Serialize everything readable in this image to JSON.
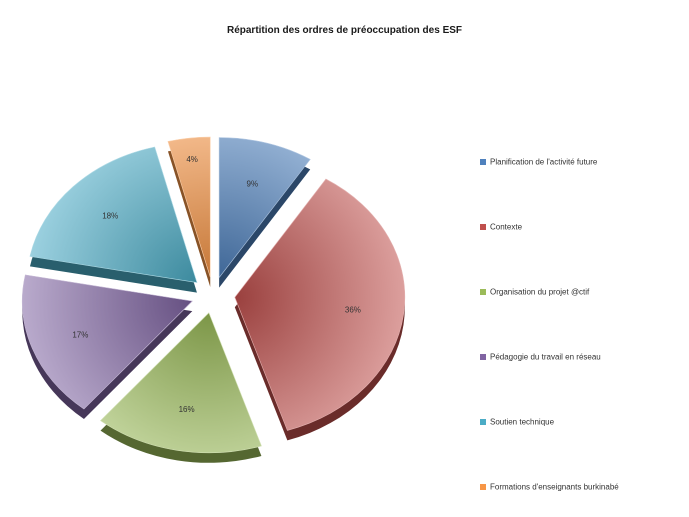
{
  "chart_data": {
    "type": "pie",
    "title": "Répartition des ordres de préoccupation des ESF",
    "legend_position": "right",
    "exploded": true,
    "three_d": true,
    "slices": [
      {
        "label": "Planification de l'activité future",
        "value": 9,
        "display": "9%",
        "color": "#4F81BD"
      },
      {
        "label": "Contexte",
        "value": 36,
        "display": "36%",
        "color": "#C0504D"
      },
      {
        "label": "Organisation du projet @ctif",
        "value": 16,
        "display": "16%",
        "color": "#9BBB59"
      },
      {
        "label": "Pédagogie du travail en réseau",
        "value": 17,
        "display": "17%",
        "color": "#8064A2"
      },
      {
        "label": "Soutien technique",
        "value": 18,
        "display": "18%",
        "color": "#4BACC6"
      },
      {
        "label": "Formations d'enseignants burkinabé",
        "value": 4,
        "display": "4%",
        "color": "#F79646"
      }
    ]
  }
}
